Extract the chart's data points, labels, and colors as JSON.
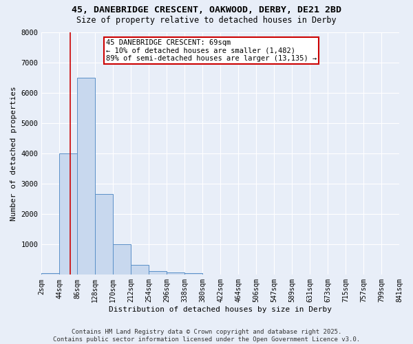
{
  "title": "45, DANEBRIDGE CRESCENT, OAKWOOD, DERBY, DE21 2BD",
  "subtitle": "Size of property relative to detached houses in Derby",
  "xlabel": "Distribution of detached houses by size in Derby",
  "ylabel": "Number of detached properties",
  "bin_labels": [
    "2sqm",
    "44sqm",
    "86sqm",
    "128sqm",
    "170sqm",
    "212sqm",
    "254sqm",
    "296sqm",
    "338sqm",
    "380sqm",
    "422sqm",
    "464sqm",
    "506sqm",
    "547sqm",
    "589sqm",
    "631sqm",
    "673sqm",
    "715sqm",
    "757sqm",
    "799sqm",
    "841sqm"
  ],
  "bar_heights": [
    50,
    4000,
    6500,
    2650,
    1000,
    320,
    120,
    80,
    50,
    0,
    0,
    0,
    0,
    0,
    0,
    0,
    0,
    0,
    0,
    0
  ],
  "bar_color": "#c8d8ee",
  "bar_edge_color": "#5a90c8",
  "background_color": "#e8eef8",
  "grid_color": "#ffffff",
  "ylim": [
    0,
    8000
  ],
  "yticks": [
    0,
    1000,
    2000,
    3000,
    4000,
    5000,
    6000,
    7000,
    8000
  ],
  "property_line_color": "#cc0000",
  "annotation_text": "45 DANEBRIDGE CRESCENT: 69sqm\n← 10% of detached houses are smaller (1,482)\n89% of semi-detached houses are larger (13,135) →",
  "annotation_box_color": "#ffffff",
  "annotation_box_edge_color": "#cc0000",
  "footnote": "Contains HM Land Registry data © Crown copyright and database right 2025.\nContains public sector information licensed under the Open Government Licence v3.0.",
  "title_fontsize": 9.5,
  "subtitle_fontsize": 8.5,
  "tick_fontsize": 7,
  "xlabel_fontsize": 8,
  "ylabel_fontsize": 8,
  "annotation_fontsize": 7.5,
  "footnote_fontsize": 6.5
}
